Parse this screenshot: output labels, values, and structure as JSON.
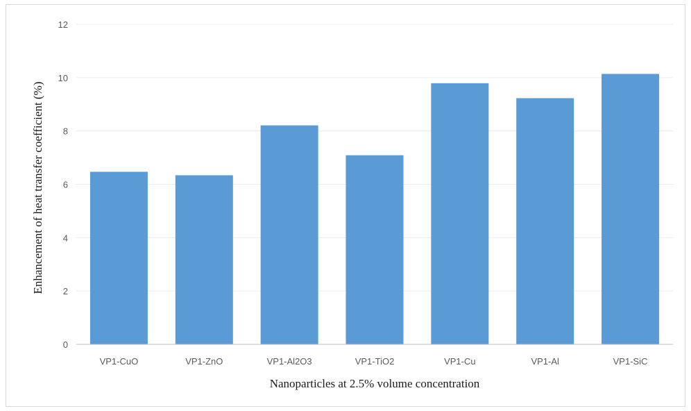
{
  "chart_data": {
    "type": "bar",
    "title": "",
    "xlabel": "Nanoparticles at 2.5% volume concentration",
    "ylabel": "Enhancement of heat transfer coefficient (%)",
    "categories": [
      "VP1-CuO",
      "VP1-ZnO",
      "VP1-Al2O3",
      "VP1-TiO2",
      "VP1-Cu",
      "VP1-Al",
      "VP1-SiC"
    ],
    "values": [
      6.47,
      6.34,
      8.21,
      7.09,
      9.79,
      9.23,
      10.14
    ],
    "ylim": [
      0,
      12
    ],
    "yticks": [
      0,
      2,
      4,
      6,
      8,
      10,
      12
    ],
    "grid": true,
    "legend": "none",
    "bar_color": "#5b9bd5",
    "grid_color": "#ececec",
    "axis_color": "#bfbfbf"
  }
}
